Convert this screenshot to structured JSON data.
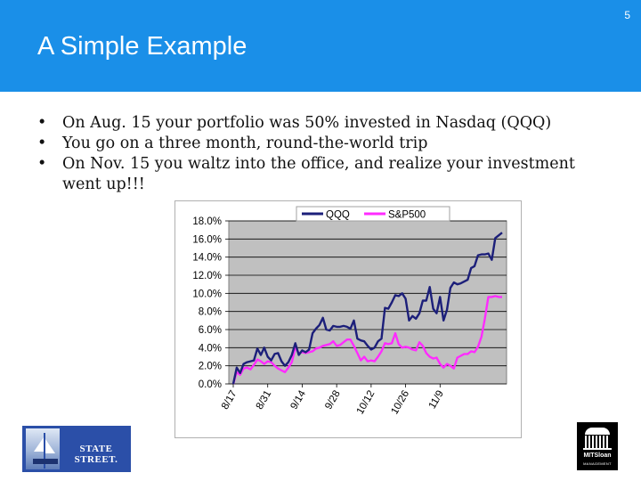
{
  "slide": {
    "number": "5",
    "title": "A Simple Example"
  },
  "bullets": [
    "On Aug. 15 your portfolio was 50% invested in Nasdaq (QQQ)",
    "You go on a three month, round-the-world trip",
    "On Nov. 15 you waltz into the office, and realize your investment",
    "went up!!!"
  ],
  "bullet_marker": "•",
  "logos": {
    "left": {
      "text": "STATE STREET.",
      "icon": "ship-icon"
    },
    "right": {
      "text": "MITSloan",
      "subtext": "MANAGEMENT",
      "icon": "dome-icon"
    }
  },
  "colors": {
    "header": "#1a8fe8",
    "plot_bg": "#c0c0c0",
    "qqq": "#1c1f7a",
    "sp500": "#ff2bff"
  },
  "chart_data": {
    "type": "line",
    "title": "",
    "xlabel": "",
    "ylabel": "",
    "ylim": [
      0,
      18
    ],
    "y_ticks": [
      "0.0%",
      "2.0%",
      "4.0%",
      "6.0%",
      "8.0%",
      "10.0%",
      "12.0%",
      "14.0%",
      "16.0%",
      "18.0%"
    ],
    "x_ticks": [
      "8/17",
      "8/31",
      "9/14",
      "9/28",
      "10/12",
      "10/26",
      "11/9"
    ],
    "x_tick_index": [
      0,
      10,
      20,
      30,
      40,
      50,
      60
    ],
    "legend_position": "top",
    "grid": true,
    "series": [
      {
        "name": "QQQ",
        "color": "#1c1f7a",
        "values": [
          0.0,
          1.8,
          1.2,
          2.2,
          2.4,
          2.5,
          2.6,
          3.9,
          3.2,
          4.0,
          3.0,
          2.6,
          3.3,
          3.4,
          2.5,
          2.0,
          2.4,
          3.2,
          4.5,
          3.2,
          3.7,
          3.5,
          3.8,
          5.6,
          6.1,
          6.5,
          7.3,
          6.0,
          5.9,
          6.4,
          6.3,
          6.3,
          6.4,
          6.3,
          6.1,
          7.0,
          5.0,
          4.8,
          4.7,
          4.2,
          3.8,
          4.0,
          4.7,
          5.0,
          8.4,
          8.3,
          9.0,
          9.8,
          9.7,
          10.0,
          9.4,
          7.0,
          7.5,
          7.2,
          7.8,
          9.2,
          9.2,
          10.7,
          8.3,
          7.8,
          9.6,
          7.0,
          8.2,
          10.6,
          11.2,
          11.0,
          11.1,
          11.3,
          11.5,
          12.8,
          13.0,
          14.2,
          14.3,
          14.3,
          14.4,
          13.7,
          16.1,
          16.4,
          16.7
        ]
      },
      {
        "name": "S&P500",
        "color": "#ff2bff",
        "values": [
          0.0,
          1.3,
          1.0,
          1.7,
          1.8,
          1.6,
          2.1,
          2.7,
          2.5,
          2.2,
          2.5,
          2.4,
          2.0,
          1.7,
          1.5,
          1.3,
          1.8,
          2.4,
          4.0,
          3.4,
          3.5,
          3.4,
          3.5,
          3.6,
          3.9,
          4.0,
          4.2,
          4.3,
          4.4,
          4.7,
          4.2,
          4.3,
          4.6,
          4.9,
          4.9,
          4.2,
          3.4,
          2.6,
          3.0,
          2.5,
          2.6,
          2.5,
          3.0,
          3.6,
          4.5,
          4.4,
          4.5,
          5.6,
          4.4,
          4.0,
          4.1,
          4.0,
          3.8,
          3.7,
          4.6,
          4.2,
          3.4,
          3.0,
          2.8,
          2.9,
          2.2,
          1.8,
          2.2,
          2.0,
          1.7,
          2.9,
          3.1,
          3.3,
          3.3,
          3.6,
          3.5,
          4.1,
          5.2,
          7.2,
          9.6,
          9.6,
          9.7,
          9.6,
          9.6
        ]
      }
    ]
  }
}
